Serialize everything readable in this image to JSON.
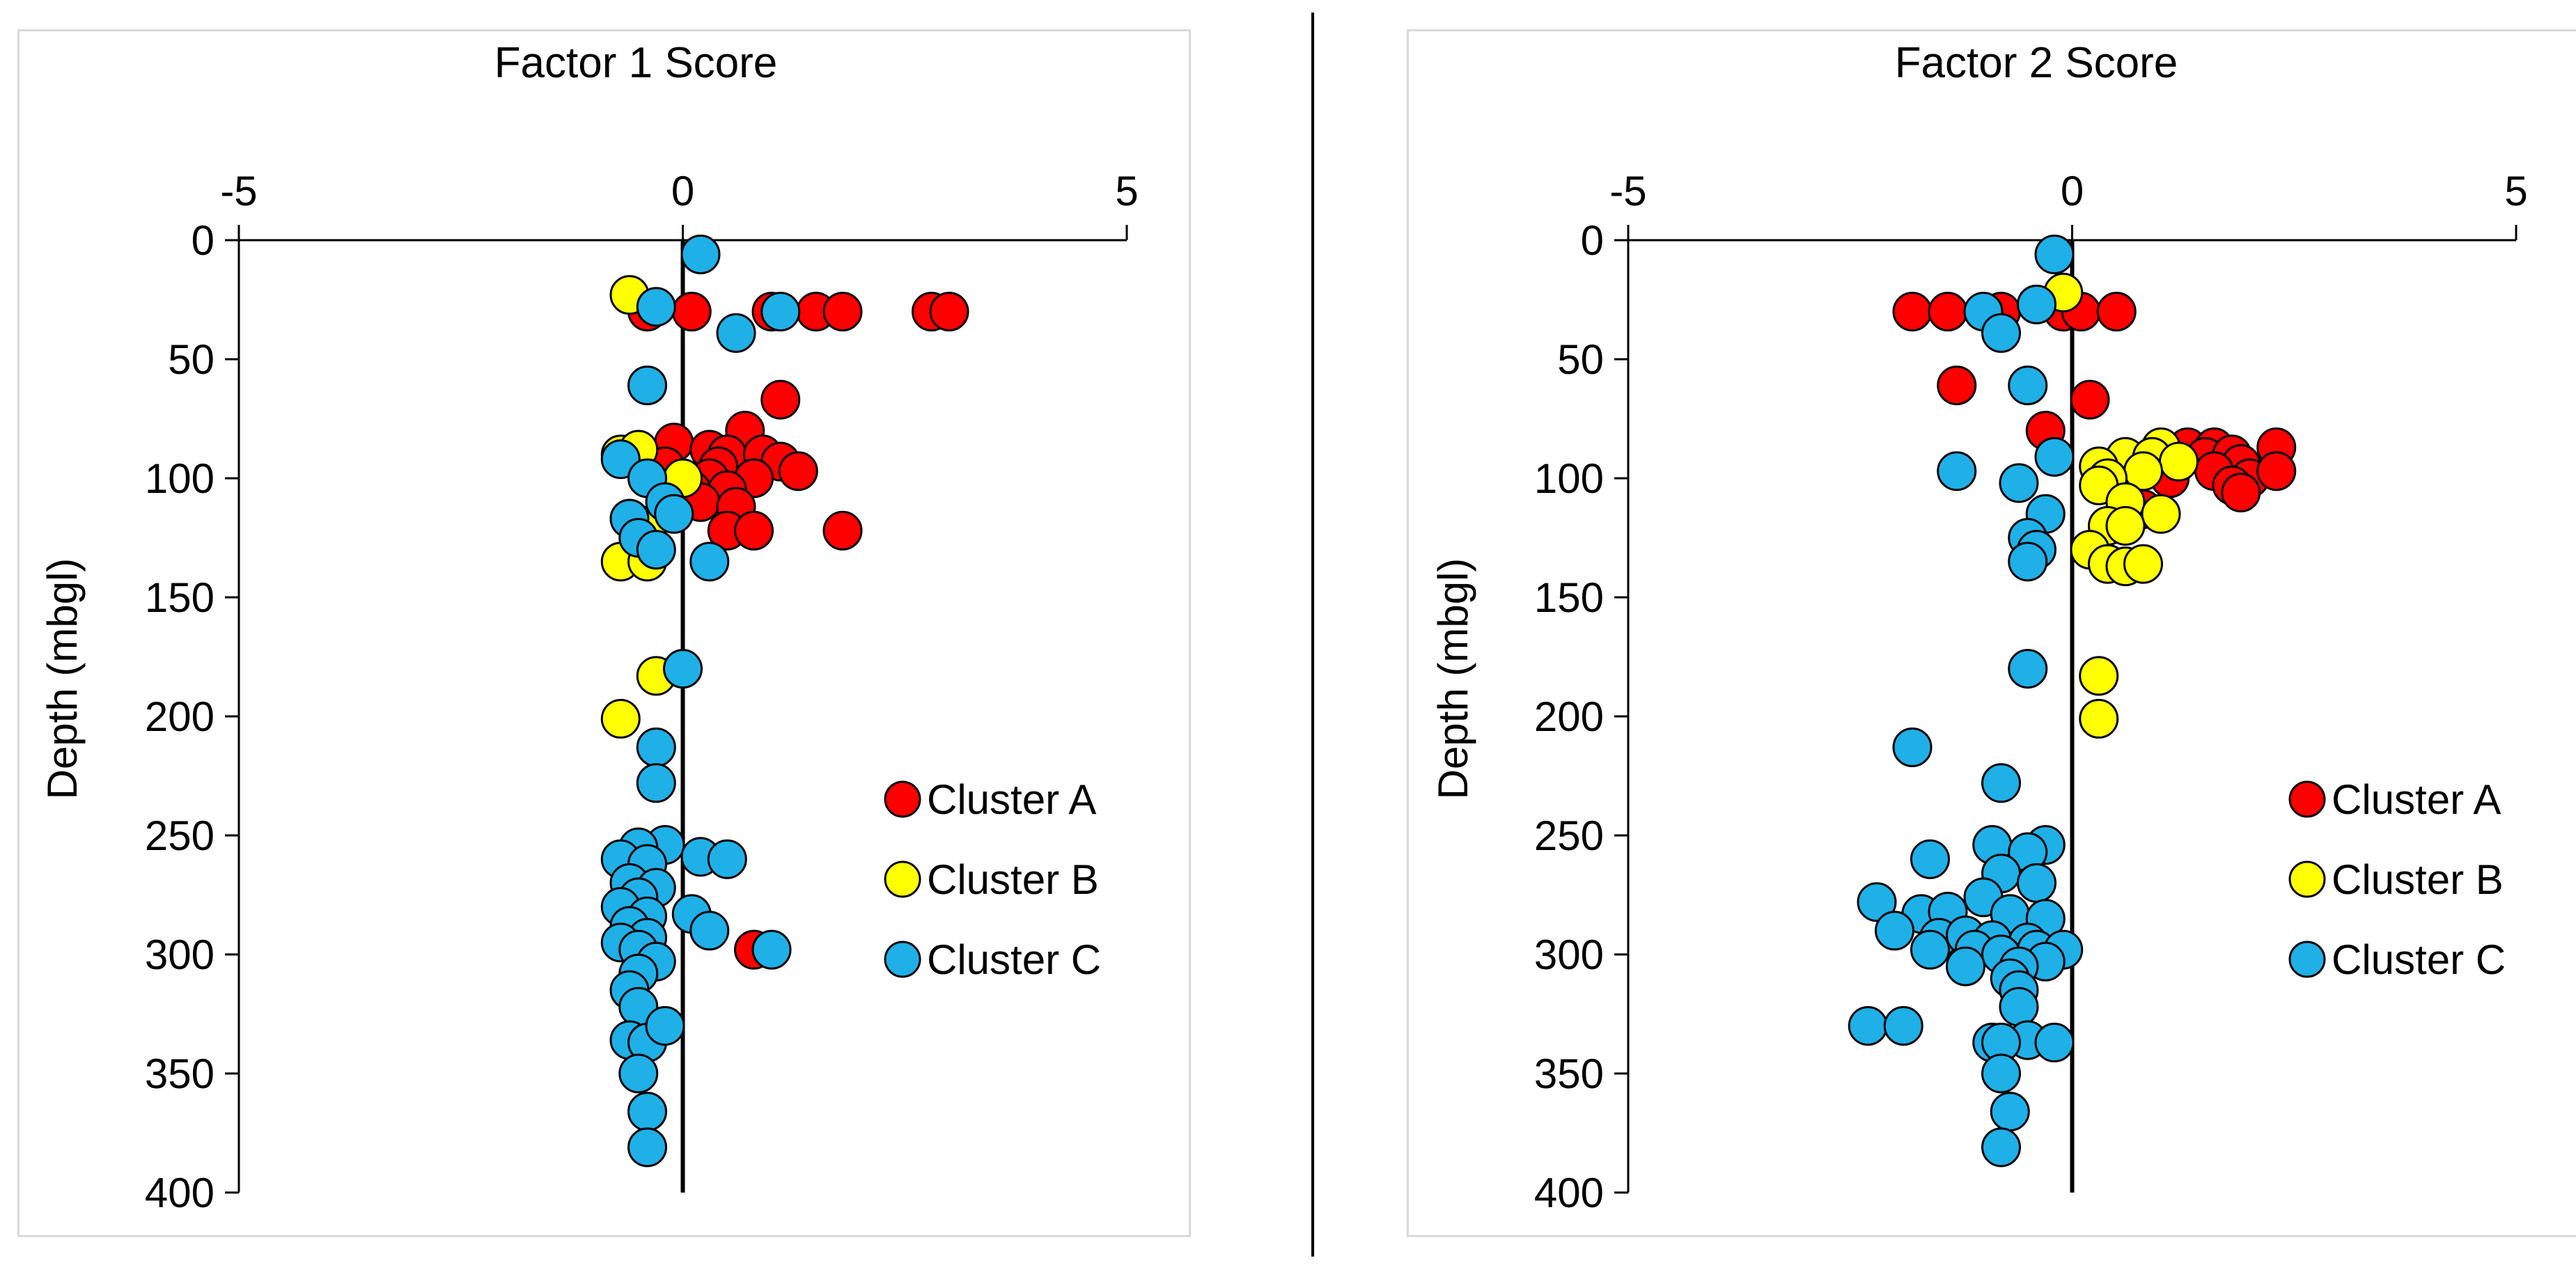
{
  "chart_data": [
    {
      "type": "scatter",
      "title": "Factor 1 Score",
      "xlabel": "Factor 1 Score",
      "ylabel": "Depth (mbgl)",
      "xlim": [
        -5,
        5
      ],
      "ylim": [
        0,
        400
      ],
      "y_reversed": true,
      "x_axis_position": "top",
      "xticks": [
        "-5",
        "0",
        "5"
      ],
      "yticks": [
        "0",
        "50",
        "100",
        "150",
        "200",
        "250",
        "300",
        "350",
        "400"
      ],
      "legend_position": "right",
      "series": [
        {
          "name": "Cluster A",
          "color": "#ff0000",
          "points": [
            [
              -0.4,
              30
            ],
            [
              0.1,
              30
            ],
            [
              1.0,
              30
            ],
            [
              1.5,
              30
            ],
            [
              1.8,
              30
            ],
            [
              2.8,
              30
            ],
            [
              3.0,
              30
            ],
            [
              1.1,
              67
            ],
            [
              0.7,
              80
            ],
            [
              -0.1,
              85
            ],
            [
              0.3,
              88
            ],
            [
              0.5,
              90
            ],
            [
              0.9,
              90
            ],
            [
              1.1,
              93
            ],
            [
              -0.2,
              95
            ],
            [
              0.4,
              95
            ],
            [
              1.3,
              97
            ],
            [
              0.3,
              100
            ],
            [
              0.8,
              100
            ],
            [
              0.1,
              105
            ],
            [
              0.5,
              105
            ],
            [
              0.2,
              110
            ],
            [
              0.6,
              112
            ],
            [
              0.5,
              122
            ],
            [
              0.8,
              122
            ],
            [
              1.8,
              122
            ],
            [
              0.8,
              298
            ]
          ]
        },
        {
          "name": "Cluster B",
          "color": "#ffff00",
          "points": [
            [
              -0.6,
              23
            ],
            [
              -0.7,
              90
            ],
            [
              -0.5,
              88
            ],
            [
              0,
              100
            ],
            [
              -0.6,
              117
            ],
            [
              -0.4,
              120
            ],
            [
              -0.7,
              135
            ],
            [
              -0.4,
              135
            ],
            [
              -0.3,
              183
            ],
            [
              -0.7,
              201
            ]
          ]
        },
        {
          "name": "Cluster C",
          "color": "#1fb0e8",
          "points": [
            [
              0.2,
              6
            ],
            [
              -0.3,
              28
            ],
            [
              1.1,
              30
            ],
            [
              0.6,
              39
            ],
            [
              -0.4,
              61
            ],
            [
              -0.7,
              92
            ],
            [
              -0.4,
              100
            ],
            [
              -0.2,
              110
            ],
            [
              -0.1,
              115
            ],
            [
              -0.6,
              117
            ],
            [
              -0.5,
              125
            ],
            [
              -0.3,
              130
            ],
            [
              0.3,
              135
            ],
            [
              0,
              180
            ],
            [
              -0.3,
              213
            ],
            [
              -0.3,
              228
            ],
            [
              -0.2,
              254
            ],
            [
              -0.5,
              255
            ],
            [
              -0.7,
              260
            ],
            [
              -0.4,
              262
            ],
            [
              0.2,
              259
            ],
            [
              0.5,
              260
            ],
            [
              -0.6,
              270
            ],
            [
              -0.3,
              272
            ],
            [
              -0.5,
              276
            ],
            [
              -0.7,
              280
            ],
            [
              -0.4,
              284
            ],
            [
              0.1,
              283
            ],
            [
              -0.6,
              288
            ],
            [
              0.3,
              290
            ],
            [
              -0.4,
              293
            ],
            [
              -0.7,
              295
            ],
            [
              -0.5,
              298
            ],
            [
              1.0,
              298
            ],
            [
              -0.3,
              303
            ],
            [
              -0.5,
              308
            ],
            [
              -0.6,
              315
            ],
            [
              -0.5,
              322
            ],
            [
              -0.6,
              336
            ],
            [
              -0.4,
              337
            ],
            [
              -0.2,
              330
            ],
            [
              -0.5,
              350
            ],
            [
              -0.4,
              366
            ],
            [
              -0.4,
              381
            ]
          ]
        }
      ]
    },
    {
      "type": "scatter",
      "title": "Factor 2 Score",
      "xlabel": "Factor 2 Score",
      "ylabel": "Depth (mbgl)",
      "xlim": [
        -5,
        5
      ],
      "ylim": [
        0,
        400
      ],
      "y_reversed": true,
      "x_axis_position": "top",
      "xticks": [
        "-5",
        "0",
        "5"
      ],
      "yticks": [
        "0",
        "50",
        "100",
        "150",
        "200",
        "250",
        "300",
        "350",
        "400"
      ],
      "legend_position": "right",
      "series": [
        {
          "name": "Cluster A",
          "color": "#ff0000",
          "points": [
            [
              -1.8,
              30
            ],
            [
              -1.4,
              30
            ],
            [
              -0.8,
              30
            ],
            [
              -0.1,
              30
            ],
            [
              0.1,
              30
            ],
            [
              0.5,
              30
            ],
            [
              -1.3,
              61
            ],
            [
              0.2,
              67
            ],
            [
              -0.3,
              80
            ],
            [
              1.3,
              87
            ],
            [
              1.6,
              87
            ],
            [
              2.3,
              87
            ],
            [
              1.5,
              91
            ],
            [
              1.8,
              90
            ],
            [
              1.9,
              94
            ],
            [
              1.6,
              97
            ],
            [
              2.0,
              100
            ],
            [
              2.3,
              97
            ],
            [
              1.1,
              100
            ],
            [
              1.8,
              103
            ],
            [
              1.9,
              106
            ],
            [
              0.6,
              110
            ],
            [
              0.8,
              113
            ]
          ]
        },
        {
          "name": "Cluster B",
          "color": "#ffff00",
          "points": [
            [
              -0.1,
              22
            ],
            [
              1.0,
              87
            ],
            [
              0.6,
              91
            ],
            [
              0.9,
              91
            ],
            [
              1.2,
              93
            ],
            [
              0.3,
              95
            ],
            [
              0.8,
              97
            ],
            [
              0.4,
              100
            ],
            [
              0.3,
              103
            ],
            [
              0.6,
              110
            ],
            [
              1.0,
              115
            ],
            [
              0.4,
              120
            ],
            [
              0.6,
              120
            ],
            [
              0.2,
              130
            ],
            [
              0.4,
              136
            ],
            [
              0.6,
              137
            ],
            [
              0.8,
              136
            ],
            [
              0.3,
              183
            ],
            [
              0.3,
              201
            ]
          ]
        },
        {
          "name": "Cluster C",
          "color": "#1fb0e8",
          "points": [
            [
              -0.2,
              6
            ],
            [
              -0.4,
              27
            ],
            [
              -1.0,
              30
            ],
            [
              -0.8,
              39
            ],
            [
              -0.5,
              61
            ],
            [
              -0.2,
              91
            ],
            [
              -1.3,
              97
            ],
            [
              -0.6,
              102
            ],
            [
              -0.3,
              115
            ],
            [
              -0.5,
              125
            ],
            [
              -0.4,
              130
            ],
            [
              -0.5,
              135
            ],
            [
              -0.5,
              180
            ],
            [
              -1.8,
              213
            ],
            [
              -0.8,
              228
            ],
            [
              -0.9,
              254
            ],
            [
              -0.3,
              254
            ],
            [
              -0.5,
              257
            ],
            [
              -1.6,
              260
            ],
            [
              -0.8,
              266
            ],
            [
              -0.4,
              270
            ],
            [
              -2.2,
              278
            ],
            [
              -1.0,
              276
            ],
            [
              -1.7,
              283
            ],
            [
              -1.4,
              282
            ],
            [
              -0.7,
              283
            ],
            [
              -0.3,
              285
            ],
            [
              -2.0,
              290
            ],
            [
              -1.5,
              293
            ],
            [
              -1.2,
              292
            ],
            [
              -0.9,
              294
            ],
            [
              -0.5,
              295
            ],
            [
              -1.6,
              298
            ],
            [
              -1.1,
              298
            ],
            [
              -0.8,
              300
            ],
            [
              -0.4,
              298
            ],
            [
              -0.1,
              298
            ],
            [
              -0.3,
              303
            ],
            [
              -1.2,
              305
            ],
            [
              -0.6,
              305
            ],
            [
              -0.7,
              310
            ],
            [
              -0.6,
              315
            ],
            [
              -0.6,
              322
            ],
            [
              -2.3,
              330
            ],
            [
              -1.9,
              330
            ],
            [
              -0.9,
              337
            ],
            [
              -0.5,
              336
            ],
            [
              -0.8,
              337
            ],
            [
              -0.2,
              337
            ],
            [
              -0.8,
              350
            ],
            [
              -0.7,
              366
            ],
            [
              -0.8,
              381
            ]
          ]
        }
      ]
    }
  ]
}
